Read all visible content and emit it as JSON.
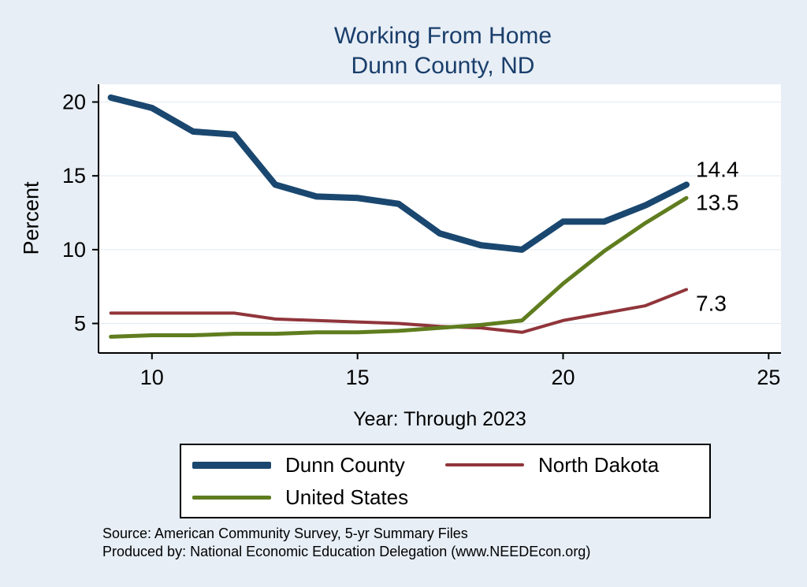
{
  "title": {
    "line1": "Working From Home",
    "line2": "Dunn County, ND"
  },
  "chart_data": {
    "type": "line",
    "x": [
      9,
      10,
      11,
      12,
      13,
      14,
      15,
      16,
      17,
      18,
      19,
      20,
      21,
      22,
      23
    ],
    "series": [
      {
        "name": "Dunn County",
        "color": "#1a476f",
        "stroke_width": 8,
        "legend_sample_height": 9,
        "end_label": "14.4",
        "label_dy": -10,
        "values": [
          20.3,
          19.6,
          18.0,
          17.8,
          14.4,
          13.6,
          13.5,
          13.1,
          11.1,
          10.3,
          10.0,
          11.9,
          11.9,
          13.0,
          14.4
        ]
      },
      {
        "name": "North Dakota",
        "color": "#90353b",
        "stroke_width": 4,
        "legend_sample_height": 4,
        "end_label": "7.3",
        "label_dy": 27,
        "values": [
          5.7,
          5.7,
          5.7,
          5.7,
          5.3,
          5.2,
          5.1,
          5.0,
          4.8,
          4.7,
          4.4,
          5.2,
          5.7,
          6.2,
          7.3
        ]
      },
      {
        "name": "United States",
        "color": "#5f7d1f",
        "stroke_width": 5,
        "legend_sample_height": 5,
        "end_label": "13.5",
        "label_dy": 15,
        "values": [
          4.1,
          4.2,
          4.2,
          4.3,
          4.3,
          4.4,
          4.4,
          4.5,
          4.7,
          4.9,
          5.2,
          7.7,
          9.9,
          11.8,
          13.5
        ]
      }
    ],
    "title": "Working From Home Dunn County, ND",
    "xlabel": "Year: Through 2023",
    "ylabel": "Percent",
    "xticks": [
      10,
      15,
      20,
      25
    ],
    "yticks": [
      5,
      10,
      15,
      20
    ],
    "xlim": [
      8.7,
      25.3
    ],
    "ylim": [
      3.0,
      21.2
    ],
    "grid": true,
    "legend_position": "bottom"
  },
  "footer": {
    "line1": "Source: American Community Survey, 5-yr Summary Files",
    "line2": "Produced by: National Economic Education Delegation (www.NEEDEcon.org)"
  },
  "colors": {
    "background": "#e7eef6",
    "plot_background": "#ffffff",
    "title": "#1a3e6b",
    "axis": "#000000",
    "gridline": "#e2eaf2",
    "legend_border": "#000000"
  }
}
